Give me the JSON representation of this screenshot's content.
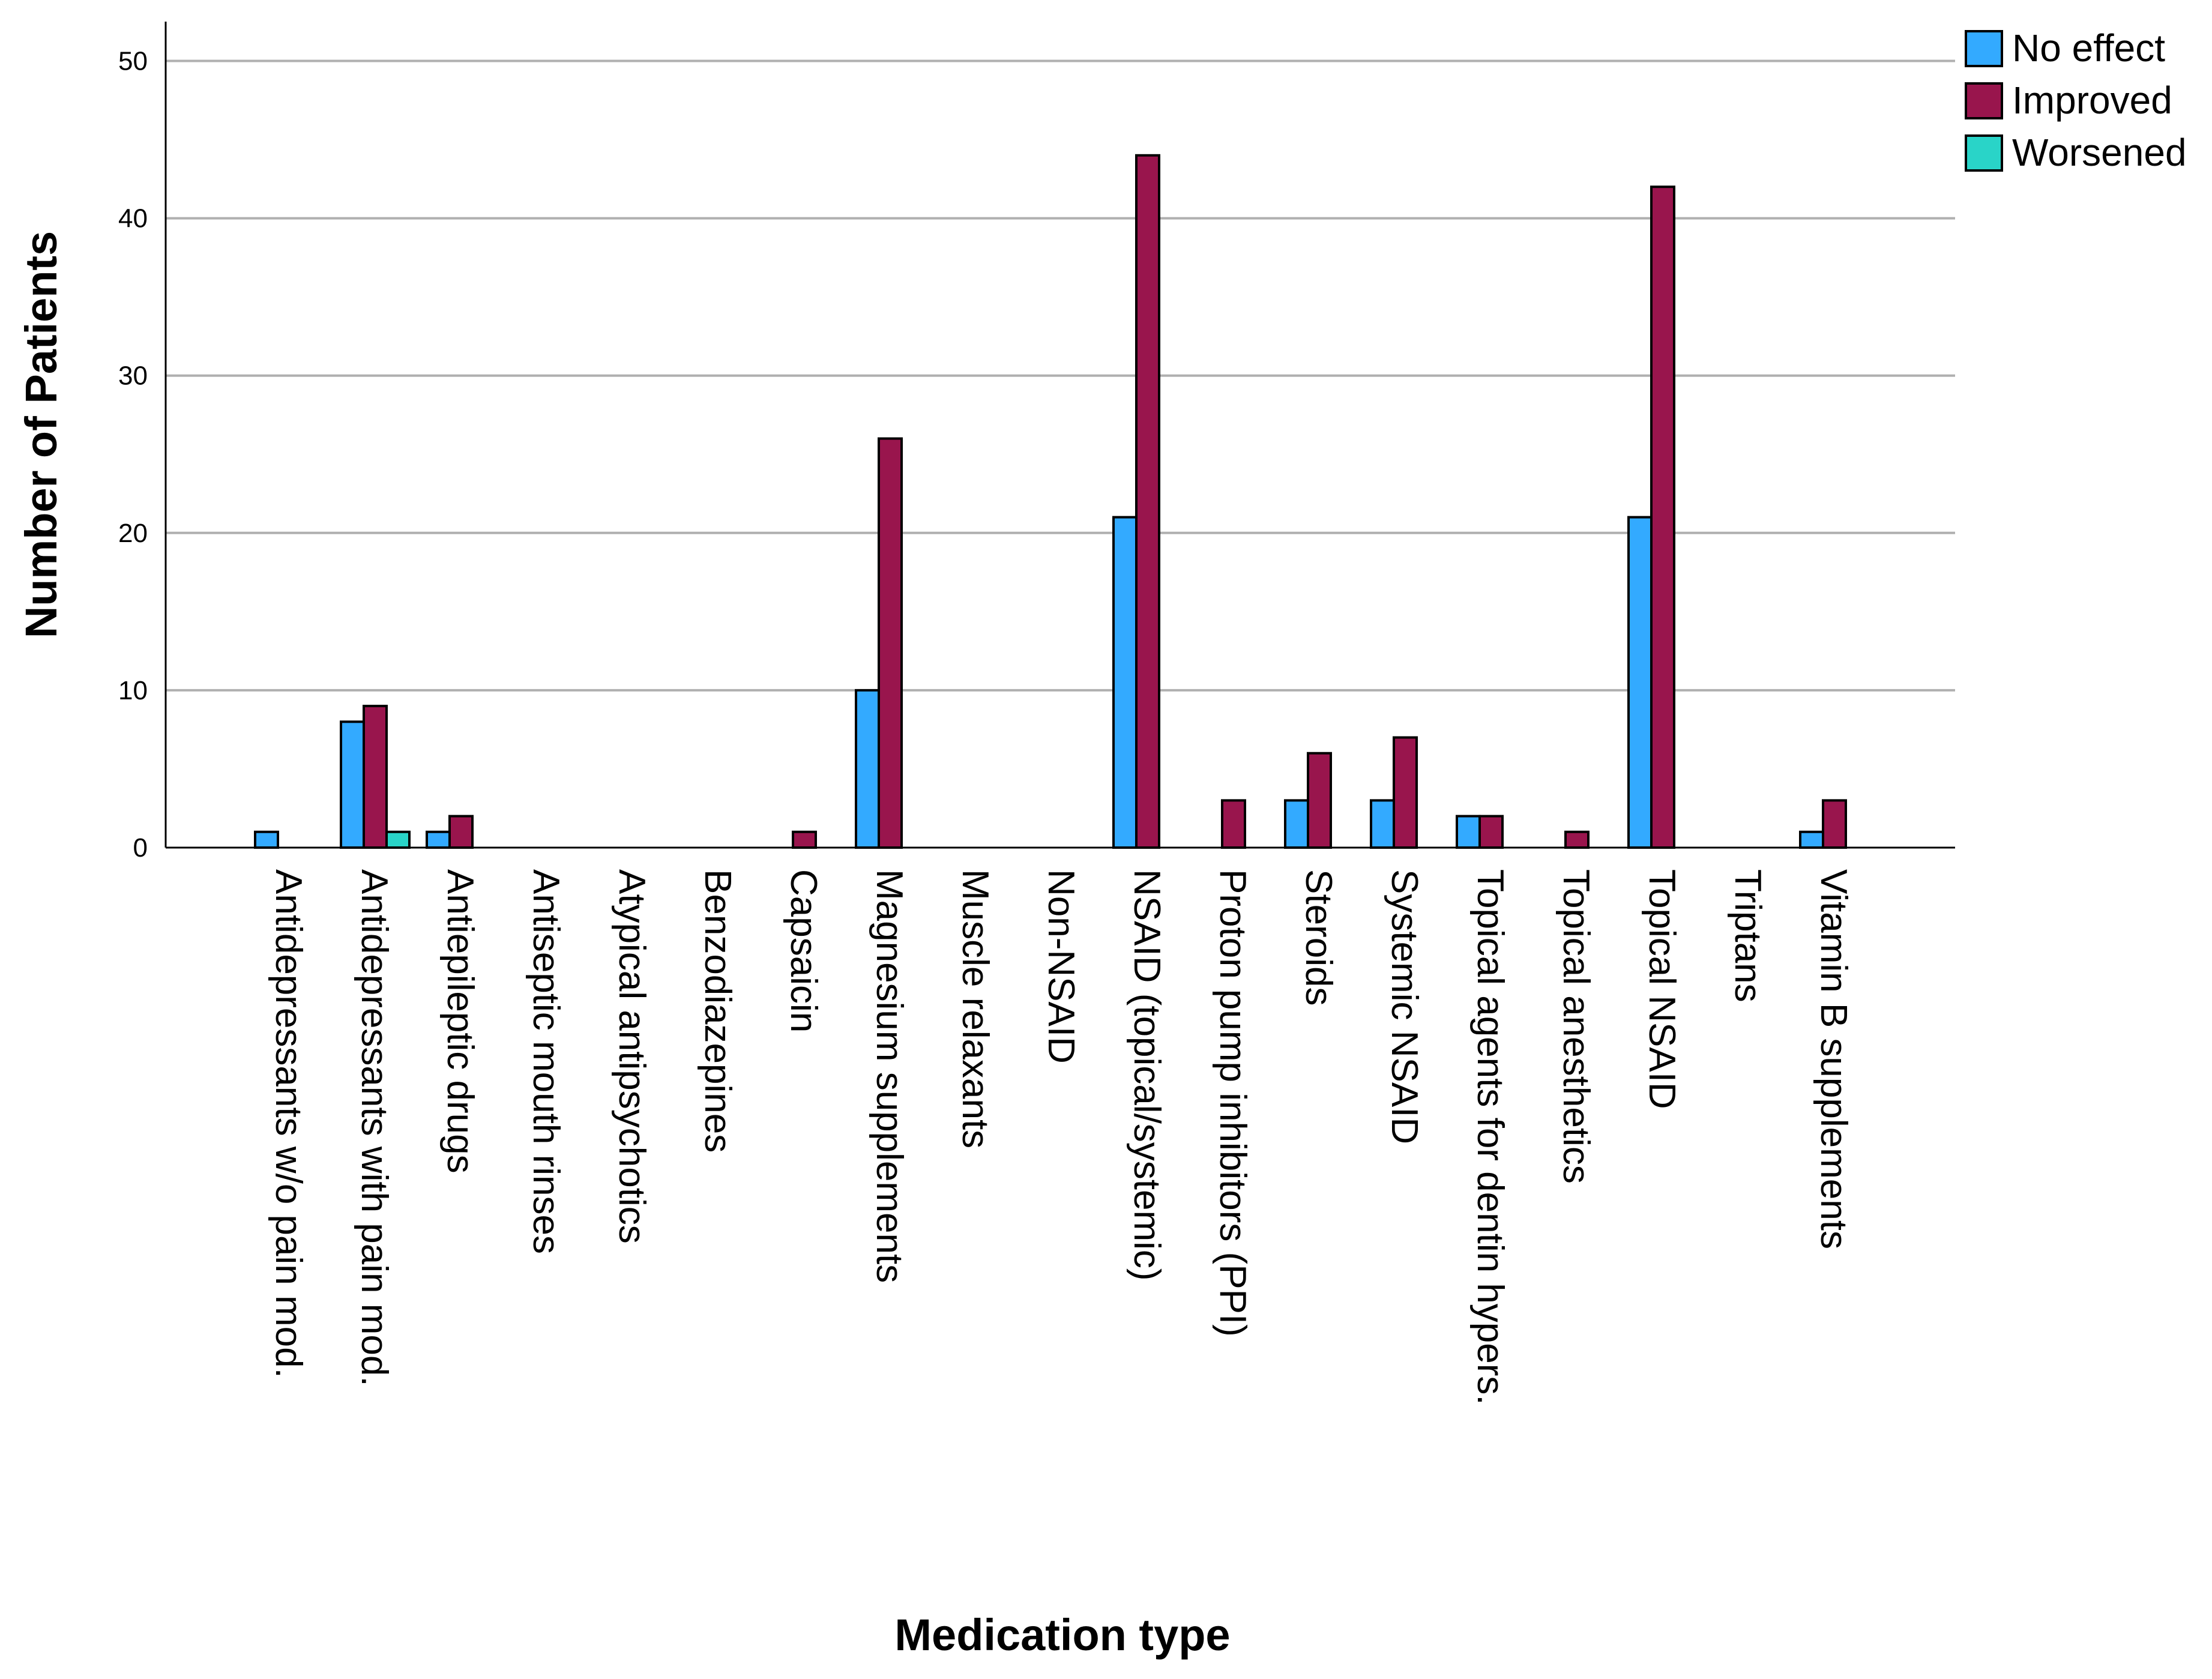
{
  "chart_data": {
    "type": "bar",
    "title": "",
    "xlabel": "Medication type",
    "ylabel": "Number of Patients",
    "ylim": [
      0,
      52.5
    ],
    "yticks": [
      0,
      10,
      20,
      30,
      40,
      50
    ],
    "grid": true,
    "legend_position": "top-right",
    "categories": [
      "Antidepressants w/o pain mod.",
      "Antidepressants with pain mod.",
      "Antiepileptic drugs",
      "Antiseptic mouth rinses",
      "Atypical antipsychotics",
      "Benzodiazepines",
      "Capsaicin",
      "Magnesium supplements",
      "Muscle relaxants",
      "Non-NSAID",
      "NSAID (topical/systemic)",
      "Proton pump inhibitors (PPI)",
      "Steroids",
      "Systemic NSAID",
      "Topical agents for dentin hypers.",
      "Topical anesthetics",
      "Topical NSAID",
      "Triptans",
      "Vitamin B supplements"
    ],
    "series": [
      {
        "name": "No effect",
        "color": "#33aaff",
        "values": [
          1,
          8,
          1,
          0,
          0,
          0,
          0,
          10,
          0,
          0,
          21,
          0,
          3,
          3,
          2,
          0,
          21,
          0,
          1
        ]
      },
      {
        "name": "Improved",
        "color": "#99154d",
        "values": [
          0,
          9,
          2,
          0,
          0,
          0,
          1,
          26,
          0,
          0,
          44,
          3,
          6,
          7,
          2,
          1,
          42,
          0,
          3
        ]
      },
      {
        "name": "Worsened",
        "color": "#29d4c8",
        "values": [
          0,
          1,
          0,
          0,
          0,
          0,
          0,
          0,
          0,
          0,
          0,
          0,
          0,
          0,
          0,
          0,
          0,
          0,
          0
        ]
      }
    ]
  }
}
